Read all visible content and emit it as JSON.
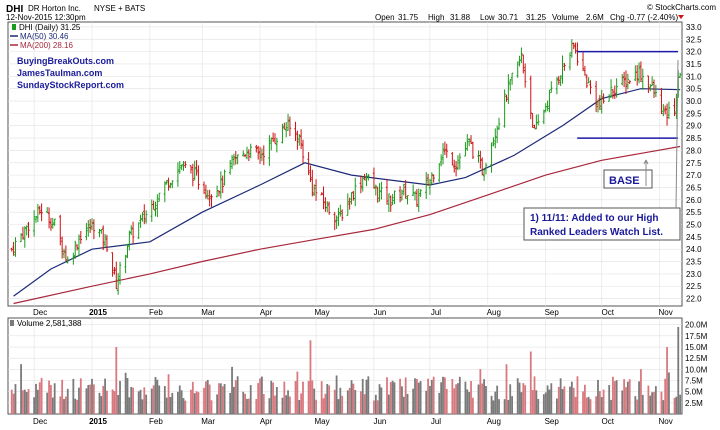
{
  "header": {
    "ticker": "DHI",
    "company": "DR Horton Inc.",
    "exchange": "NYSE + BATS",
    "date": "12-Nov-2015 12:30pm",
    "brand": "© StockCharts.com",
    "open_label": "Open",
    "open": "31.75",
    "high_label": "High",
    "high": "31.88",
    "low_label": "Low",
    "low": "30.71",
    "last": "31.25",
    "volume_label": "Volume",
    "volume": "2.6M",
    "chg_label": "Chg",
    "chg": "-0.77 (-2.40%)",
    "legend_price": "DHI (Daily) 31.25",
    "legend_ma50": "MA(50) 30.46",
    "legend_ma200": "MA(200) 28.16",
    "legend_volume": "Volume 2,581,388",
    "sites": [
      "BuyingBreakOuts.com",
      "JamesTaulman.com",
      "SundayStockReport.com"
    ]
  },
  "annotations": {
    "base": "BASE",
    "note_line1": "1) 11/11: Added to our High",
    "note_line2": "Ranked Leaders Watch List."
  },
  "colors": {
    "up": "#1a9a1a",
    "down": "#cc1111",
    "ma50": "#1b2a78",
    "ma200": "#a8283c",
    "base_lines": "#1a1aa8",
    "vol_up": "#7a7a7a",
    "vol_down": "#d9797f"
  },
  "chart_data": {
    "type": "line",
    "x_tick_labels": [
      "Dec",
      "2015",
      "Feb",
      "Mar",
      "Apr",
      "May",
      "Jun",
      "Jul",
      "Aug",
      "Sep",
      "Oct",
      "Nov"
    ],
    "y_price_ticks": [
      "22.0",
      "22.5",
      "23.0",
      "23.5",
      "24.0",
      "24.5",
      "25.0",
      "25.5",
      "26.0",
      "26.5",
      "27.0",
      "27.5",
      "28.0",
      "28.5",
      "29.0",
      "29.5",
      "30.0",
      "30.5",
      "31.0",
      "31.5",
      "32.0",
      "32.5",
      "33.0"
    ],
    "y_volume_ticks": [
      "2.5M",
      "5.0M",
      "7.5M",
      "10.0M",
      "12.5M",
      "15.0M",
      "17.5M",
      "20.0M"
    ],
    "ylim_price": [
      21.7,
      33.2
    ],
    "ylim_volume_millions": [
      0,
      21.5
    ],
    "series": [
      {
        "name": "DHI (Daily)",
        "close_path": [
          [
            "2014-11-19",
            24.0
          ],
          [
            "2014-11-28",
            25.0
          ],
          [
            "2014-12-05",
            25.6
          ],
          [
            "2014-12-12",
            25.0
          ],
          [
            "2014-12-19",
            23.5
          ],
          [
            "2014-12-26",
            24.6
          ],
          [
            "2015-01-02",
            25.0
          ],
          [
            "2015-01-09",
            24.2
          ],
          [
            "2015-01-14",
            22.6
          ],
          [
            "2015-01-21",
            24.5
          ],
          [
            "2015-01-28",
            25.2
          ],
          [
            "2015-02-04",
            26.0
          ],
          [
            "2015-02-11",
            26.8
          ],
          [
            "2015-02-18",
            27.4
          ],
          [
            "2015-02-25",
            27.0
          ],
          [
            "2015-03-04",
            26.3
          ],
          [
            "2015-03-11",
            26.6
          ],
          [
            "2015-03-18",
            27.6
          ],
          [
            "2015-03-25",
            28.0
          ],
          [
            "2015-04-01",
            27.8
          ],
          [
            "2015-04-08",
            28.4
          ],
          [
            "2015-04-15",
            29.0
          ],
          [
            "2015-04-22",
            28.5
          ],
          [
            "2015-04-29",
            26.5
          ],
          [
            "2015-05-06",
            25.8
          ],
          [
            "2015-05-13",
            25.2
          ],
          [
            "2015-05-20",
            26.2
          ],
          [
            "2015-05-27",
            27.0
          ],
          [
            "2015-06-03",
            26.3
          ],
          [
            "2015-06-10",
            26.0
          ],
          [
            "2015-06-17",
            26.4
          ],
          [
            "2015-06-24",
            26.0
          ],
          [
            "2015-07-01",
            26.8
          ],
          [
            "2015-07-08",
            28.0
          ],
          [
            "2015-07-15",
            27.5
          ],
          [
            "2015-07-22",
            28.3
          ],
          [
            "2015-07-29",
            27.2
          ],
          [
            "2015-08-05",
            28.8
          ],
          [
            "2015-08-12",
            30.5
          ],
          [
            "2015-08-19",
            31.8
          ],
          [
            "2015-08-26",
            28.7
          ],
          [
            "2015-09-02",
            30.0
          ],
          [
            "2015-09-09",
            31.2
          ],
          [
            "2015-09-16",
            32.2
          ],
          [
            "2015-09-23",
            30.8
          ],
          [
            "2015-09-30",
            29.8
          ],
          [
            "2015-10-07",
            30.5
          ],
          [
            "2015-10-14",
            30.8
          ],
          [
            "2015-10-21",
            31.2
          ],
          [
            "2015-10-28",
            30.5
          ],
          [
            "2015-11-04",
            29.4
          ],
          [
            "2015-11-09",
            29.7
          ],
          [
            "2015-11-12",
            31.25
          ]
        ]
      },
      {
        "name": "MA(50)",
        "values": [
          [
            "2014-11-20",
            22.1
          ],
          [
            "2014-12-10",
            23.2
          ],
          [
            "2015-01-01",
            24.0
          ],
          [
            "2015-02-01",
            24.3
          ],
          [
            "2015-03-01",
            25.5
          ],
          [
            "2015-04-01",
            26.6
          ],
          [
            "2015-04-25",
            27.5
          ],
          [
            "2015-05-20",
            27.0
          ],
          [
            "2015-06-10",
            26.8
          ],
          [
            "2015-07-01",
            26.6
          ],
          [
            "2015-07-20",
            26.9
          ],
          [
            "2015-08-15",
            27.8
          ],
          [
            "2015-09-10",
            29.0
          ],
          [
            "2015-10-01",
            30.1
          ],
          [
            "2015-10-22",
            30.5
          ],
          [
            "2015-11-12",
            30.46
          ]
        ]
      },
      {
        "name": "MA(200)",
        "values": [
          [
            "2014-11-20",
            21.8
          ],
          [
            "2015-01-01",
            22.5
          ],
          [
            "2015-02-01",
            23.0
          ],
          [
            "2015-03-01",
            23.5
          ],
          [
            "2015-04-01",
            24.0
          ],
          [
            "2015-05-01",
            24.4
          ],
          [
            "2015-06-01",
            24.8
          ],
          [
            "2015-07-01",
            25.4
          ],
          [
            "2015-08-01",
            26.2
          ],
          [
            "2015-09-01",
            27.0
          ],
          [
            "2015-10-01",
            27.6
          ],
          [
            "2015-11-12",
            28.16
          ]
        ]
      }
    ],
    "base_lines_price": [
      32.0,
      28.5
    ],
    "base_range_dates": [
      "2015-09-20",
      "2015-11-12"
    ],
    "volume_spikes_millions": [
      [
        "2015-01-14",
        15.0
      ],
      [
        "2015-04-28",
        16.5
      ],
      [
        "2015-08-24",
        14.0
      ],
      [
        "2015-11-05",
        15.0
      ],
      [
        "2015-11-11",
        19.5
      ]
    ],
    "legend_placement": "top-left",
    "grid": true
  }
}
